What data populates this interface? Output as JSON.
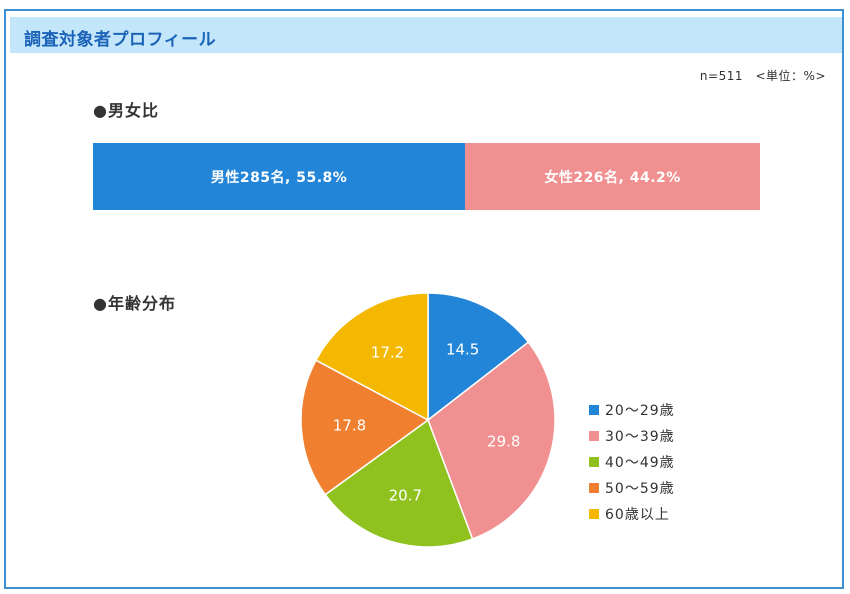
{
  "header": {
    "title": "調査対象者プロフィール"
  },
  "note": "n=511　<単位：%>",
  "gender_section": {
    "title": "●男女比"
  },
  "age_section": {
    "title": "●年齢分布"
  },
  "chart_data": [
    {
      "type": "bar",
      "title": "●男女比",
      "orientation": "horizontal-stacked",
      "categories": [
        "男性",
        "女性"
      ],
      "series": [
        {
          "name": "男性",
          "count": 285,
          "value": 55.8,
          "label": "男性285名, 55.8%",
          "color": "#2285d8"
        },
        {
          "name": "女性",
          "count": 226,
          "value": 44.2,
          "label": "女性226名, 44.2%",
          "color": "#f09090"
        }
      ]
    },
    {
      "type": "pie",
      "title": "●年齢分布",
      "categories": [
        "20～29歳",
        "30～39歳",
        "40～49歳",
        "50～59歳",
        "60歳以上"
      ],
      "values": [
        14.5,
        29.8,
        20.7,
        17.8,
        17.2
      ],
      "labels": [
        "14.5",
        "29.8",
        "20.7",
        "17.8",
        "17.2"
      ],
      "colors": [
        "#2285d8",
        "#f09090",
        "#8fc21f",
        "#f08030",
        "#f5b800"
      ],
      "legend_position": "right"
    }
  ]
}
